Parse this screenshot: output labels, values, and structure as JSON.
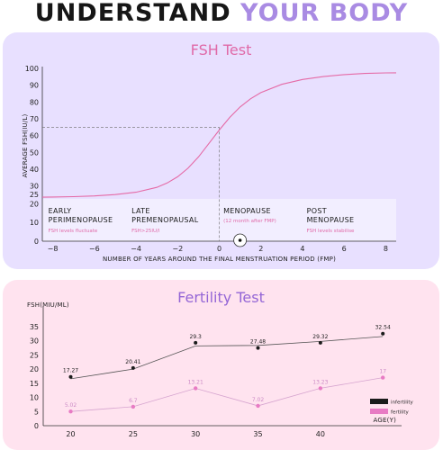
{
  "header": {
    "title_part1": "UNDERSTAND",
    "title_part2": "YOUR BODY"
  },
  "colors": {
    "title_dark": "#161616",
    "title_accent": "#a98be3",
    "fsh_panel_bg": "#e8e0ff",
    "fertility_panel_bg": "#ffe3ef",
    "fsh_curve": "#e56aa6",
    "infertility": "#1b1b1b",
    "fertility": "#e87bc4"
  },
  "chart_data": [
    {
      "type": "line",
      "title": "FSH Test",
      "xlabel": "NUMBER OF YEARS AROUND THE FINAL MENSTRUATION PERIOD (FMP)",
      "ylabel": "AVERAGE FSH(IU/L)",
      "xlim": [
        -8.5,
        8.5
      ],
      "x_ticks": [
        "-8",
        "-6",
        "-4",
        "-2",
        "0",
        "2",
        "4",
        "6",
        "8"
      ],
      "y_ticks": [
        "0",
        "10",
        "20",
        "25",
        "30",
        "40",
        "50",
        "60",
        "70",
        "80",
        "90",
        "100"
      ],
      "series": [
        {
          "x": [
            -8.5,
            -8,
            -7,
            -6,
            -5,
            -4,
            -3,
            -2.5,
            -2,
            -1.5,
            -1,
            -0.5,
            0,
            0.5,
            1,
            1.5,
            2,
            3,
            4,
            5,
            6,
            7,
            8,
            8.5
          ],
          "y": [
            23.5,
            23.6,
            23.8,
            24.2,
            24.9,
            26.3,
            29.2,
            31.8,
            35.5,
            40.6,
            47.3,
            55.2,
            63.3,
            70.8,
            77.0,
            81.9,
            85.6,
            90.5,
            93.4,
            95.1,
            96.3,
            97.0,
            97.3,
            97.4
          ]
        }
      ],
      "reference_line": {
        "x": 0,
        "y": 65,
        "style": "dashed"
      },
      "marker_x": 1,
      "phases": [
        {
          "name_lines": [
            "EARLY",
            "PERIMENOPAUSE"
          ],
          "note": "FSH levels fluctuate"
        },
        {
          "name_lines": [
            "LATE",
            "PREMENOPAUSAL"
          ],
          "note": "FSH>25IU/l"
        },
        {
          "name_lines": [
            "MENOPAUSE"
          ],
          "note": "(12 month after FMP)"
        },
        {
          "name_lines": [
            "POST",
            "MENOPAUSE"
          ],
          "note": "FSH levels stabilise"
        }
      ],
      "grid": false
    },
    {
      "type": "line",
      "title": "Fertility Test",
      "ylabel": "FSH(MIU/ML)",
      "xlabel": "AGE(Y)",
      "x_ticks": [
        "20",
        "25",
        "30",
        "35",
        "40"
      ],
      "y_ticks": [
        "0",
        "5",
        "10",
        "15",
        "20",
        "25",
        "30",
        "35"
      ],
      "ylim": [
        0,
        35
      ],
      "x": [
        20,
        25,
        30,
        35,
        40,
        45
      ],
      "series": [
        {
          "name": "infertility",
          "values": [
            17.27,
            20.41,
            29.3,
            27.48,
            29.32,
            32.54
          ],
          "labels": [
            "17.27",
            "20.41",
            "29.3",
            "27.48",
            "29.32",
            "32.54"
          ]
        },
        {
          "name": "fertility",
          "values": [
            5.02,
            6.7,
            13.21,
            7.02,
            13.23,
            17
          ],
          "labels": [
            "5.02",
            "6.7",
            "13.21",
            "7.02",
            "13.23",
            "17"
          ]
        }
      ],
      "legend_position": "bottom-right",
      "grid": false
    }
  ]
}
